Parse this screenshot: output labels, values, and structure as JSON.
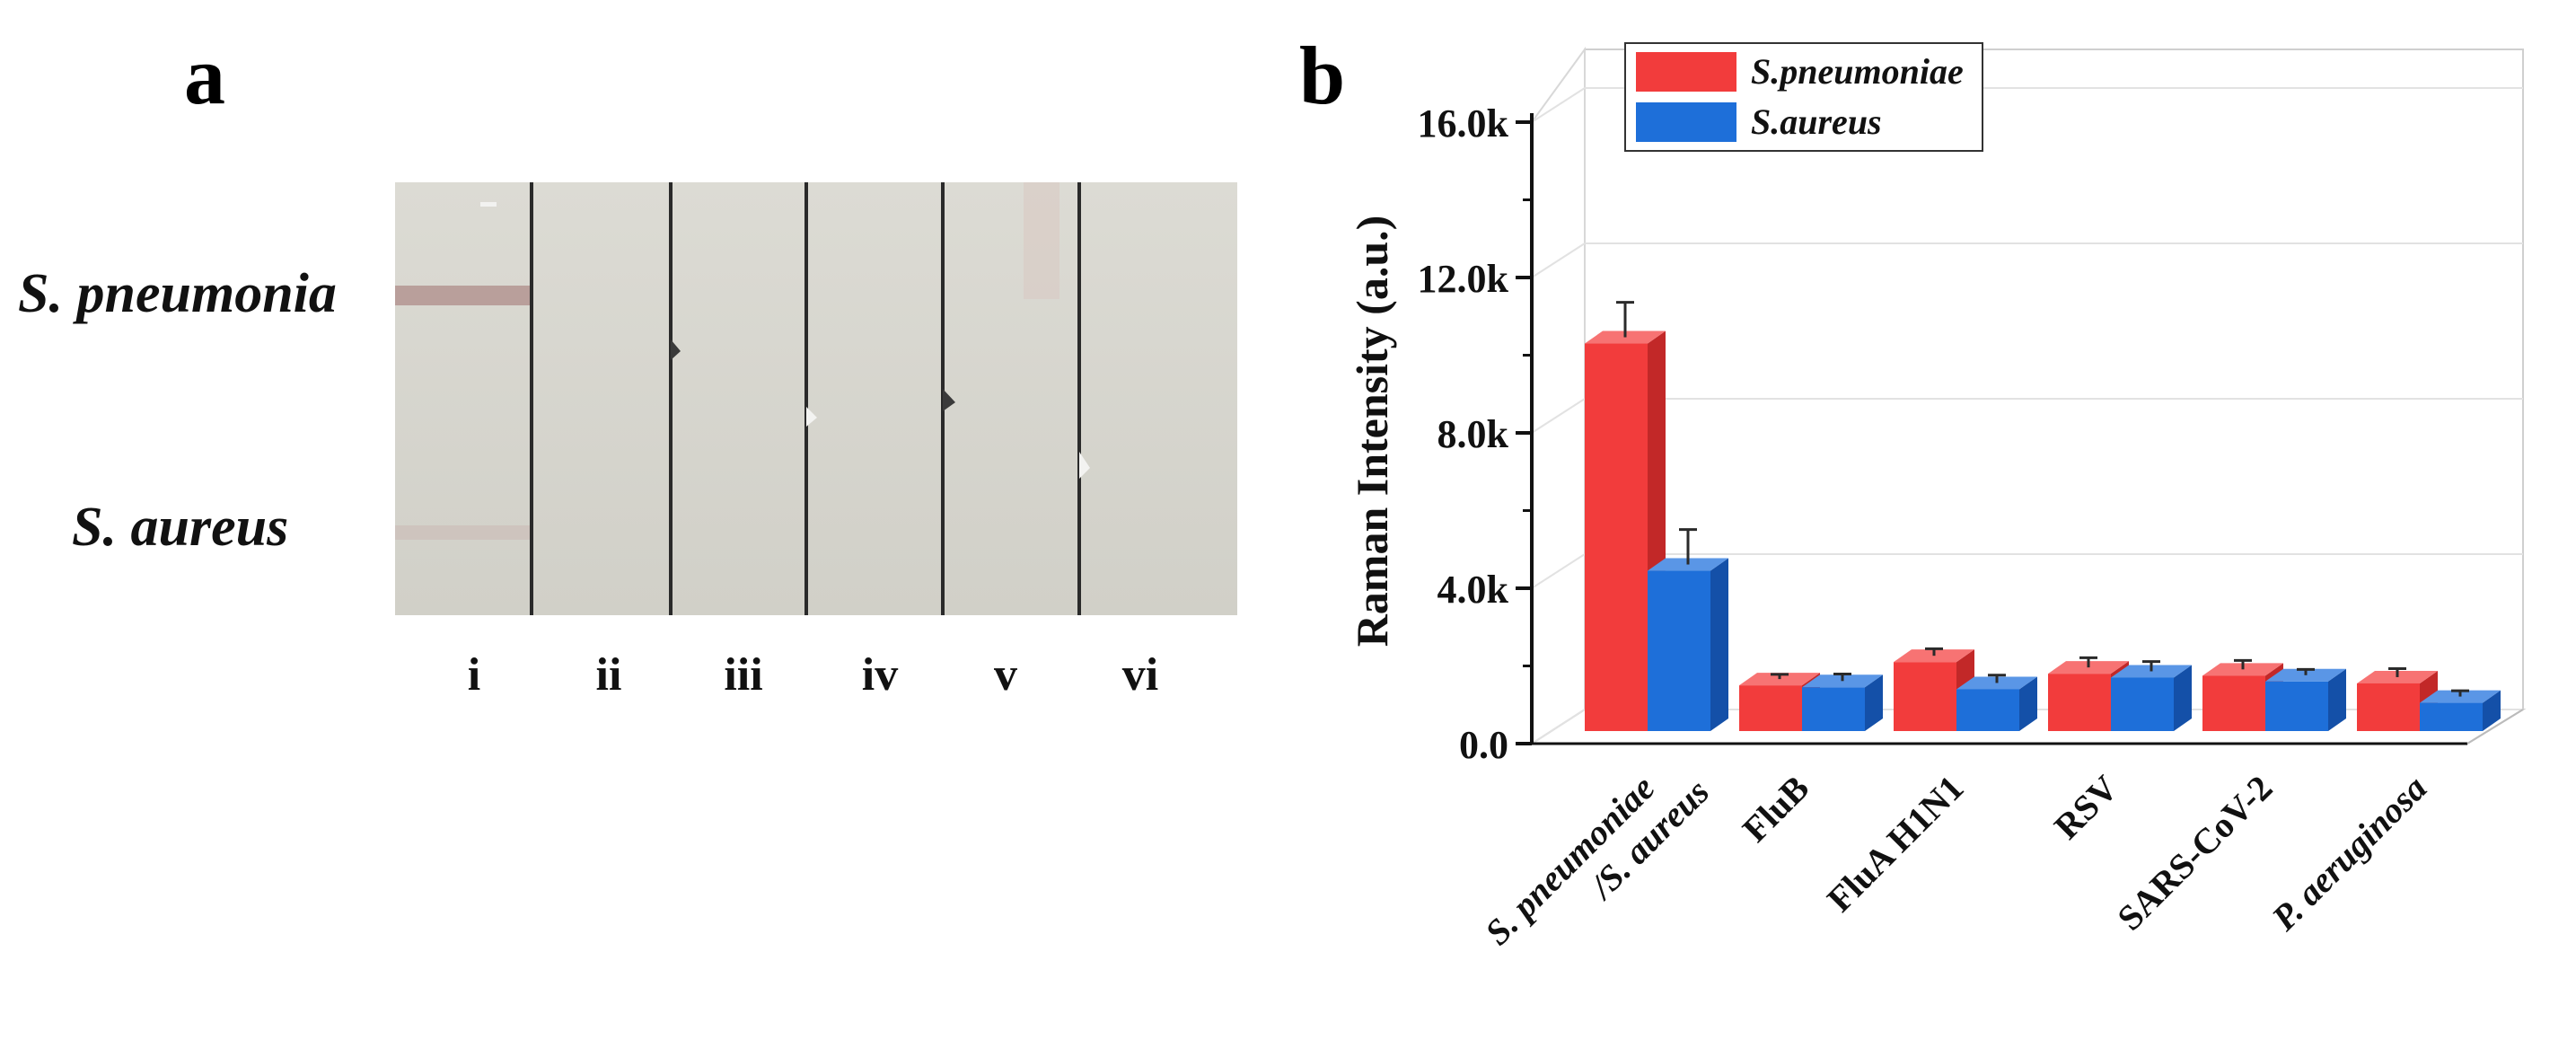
{
  "panel_a": {
    "letter": "a",
    "row_labels": [
      "S. pneumonia",
      "S. aureus"
    ],
    "lanes": [
      "i",
      "ii",
      "iii",
      "iv",
      "v",
      "vi"
    ]
  },
  "panel_b": {
    "letter": "b"
  },
  "colors": {
    "series_1": "#f23c3c",
    "series_1_dark": "#c22828",
    "series_1_light": "#f77373",
    "series_2": "#1e6fd9",
    "series_2_dark": "#1450a8",
    "series_2_light": "#5a96e6",
    "strip": "#d7d6cf",
    "strip_band": "#b79a96"
  },
  "chart_data": {
    "type": "bar",
    "style": "3d",
    "title": "",
    "xlabel": "",
    "ylabel": "Raman Intensity (a.u.)",
    "ylim": [
      0,
      16000
    ],
    "yticks": [
      0,
      4000,
      8000,
      12000,
      16000
    ],
    "ytick_labels": [
      "0.0",
      "4.0k",
      "8.0k",
      "12.0k",
      "16.0k"
    ],
    "categories": [
      [
        "S. pneumoniae",
        "/S. aureus"
      ],
      [
        "FluB"
      ],
      [
        "FluA H1N1"
      ],
      [
        "RSV"
      ],
      [
        "SARS-CoV-2"
      ],
      [
        "P. aeruginosa"
      ]
    ],
    "category_italic": [
      true,
      false,
      false,
      false,
      false,
      true
    ],
    "series": [
      {
        "name": "S.pneumoniae",
        "values": [
          10300,
          1500,
          2100,
          1800,
          1750,
          1550
        ],
        "errors": [
          900,
          120,
          180,
          250,
          230,
          220
        ]
      },
      {
        "name": "S.aureus",
        "values": [
          4450,
          1450,
          1400,
          1700,
          1600,
          1050
        ],
        "errors": [
          900,
          180,
          200,
          250,
          150,
          150
        ]
      }
    ],
    "legend_position": "top-left",
    "grid": true
  }
}
